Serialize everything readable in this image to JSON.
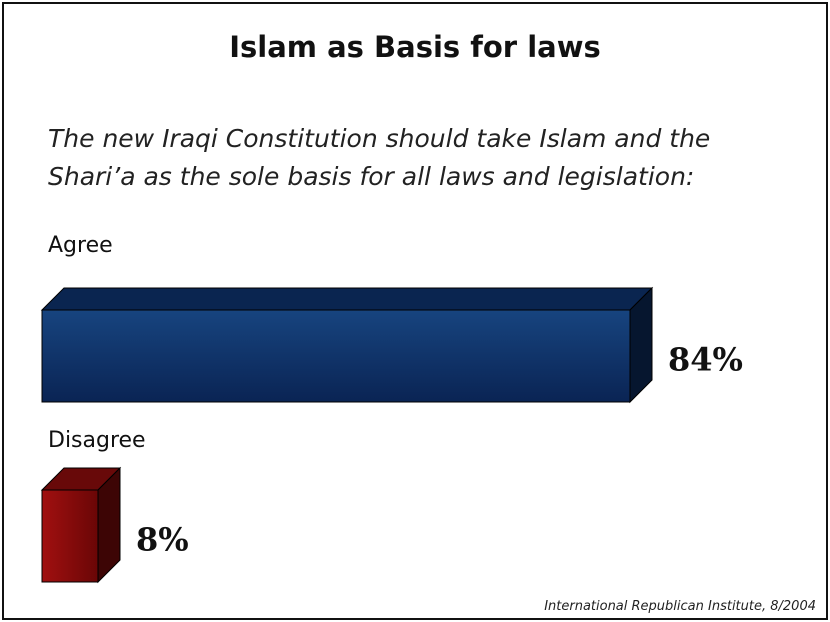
{
  "slide": {
    "title": "Islam as Basis for laws",
    "question": "The new Iraqi Constitution should take Islam and the Shari’a as the sole basis for all laws and legislation:",
    "source": "International Republican Institute, 8/2004"
  },
  "chart_data": {
    "type": "bar",
    "orientation": "horizontal",
    "title": "Islam as Basis for laws",
    "categories": [
      "Agree",
      "Disagree"
    ],
    "values": [
      84,
      8
    ],
    "value_labels": [
      "84%",
      "8%"
    ],
    "unit": "%",
    "xlim": [
      0,
      100
    ],
    "colors": [
      "#0c2c5e",
      "#7a0a0a"
    ],
    "grid": false,
    "legend": "none"
  }
}
